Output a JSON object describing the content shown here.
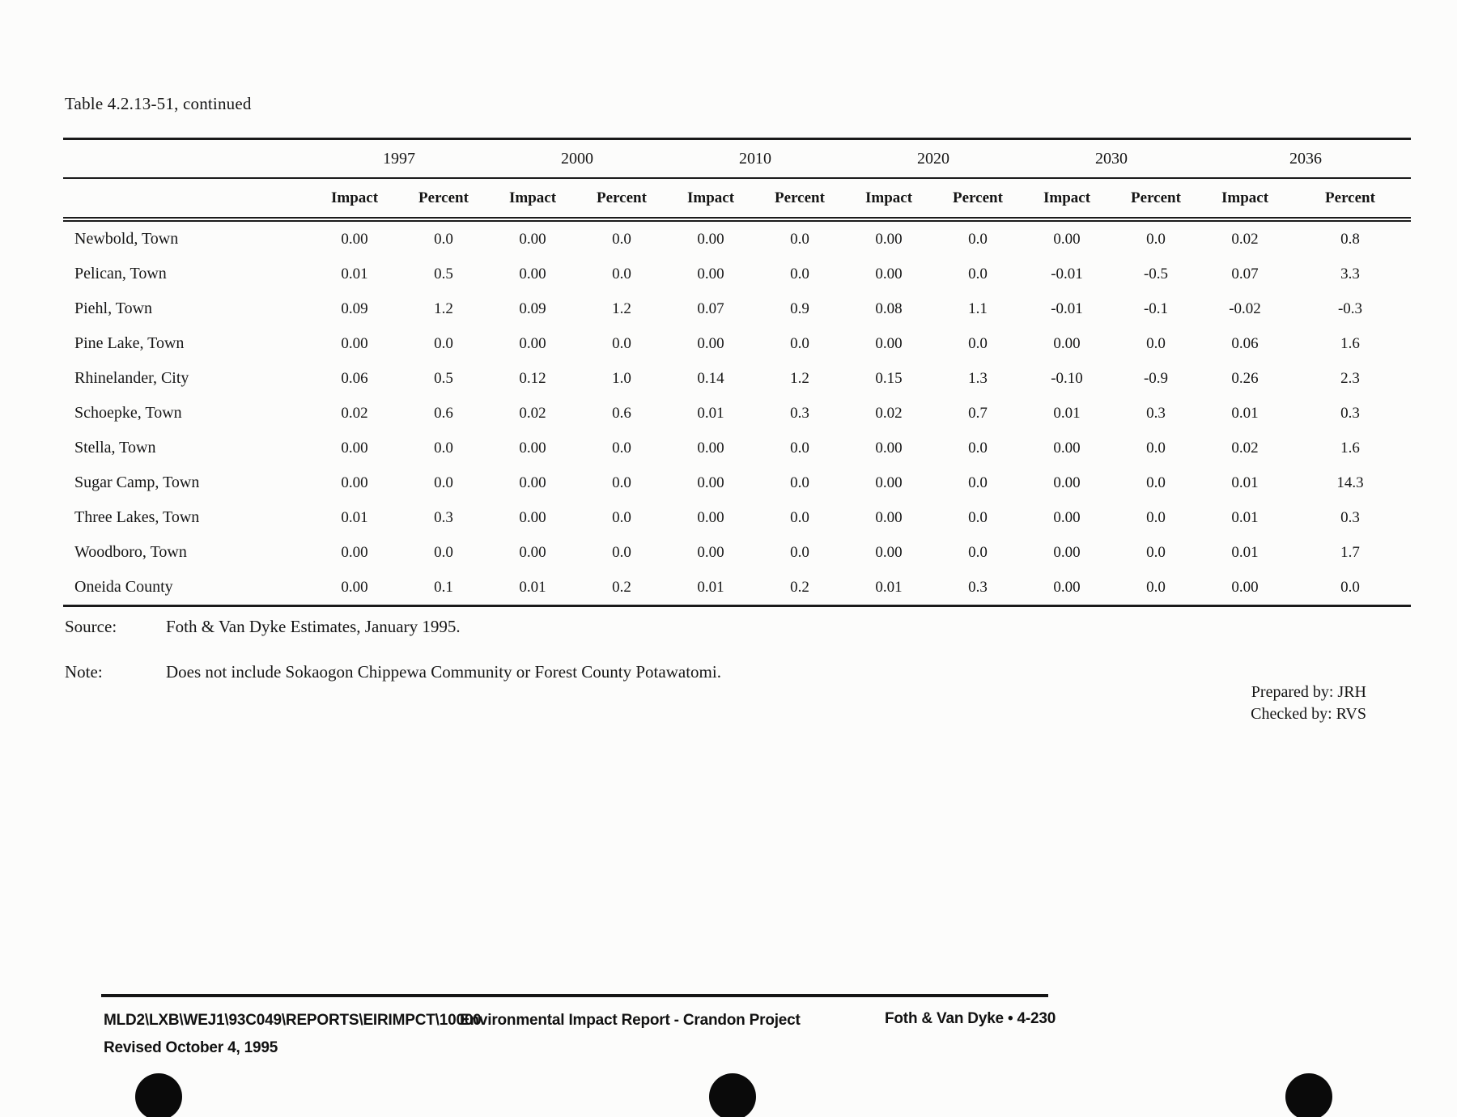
{
  "page": {
    "paper_color": "#fcfcfb",
    "ink_color": "#161616",
    "hole_color": "#0a0a0a"
  },
  "title": "Table 4.2.13-51, continued",
  "table": {
    "years": [
      "1997",
      "2000",
      "2010",
      "2020",
      "2030",
      "2036"
    ],
    "sub_headers": [
      "Impact",
      "Percent"
    ],
    "rows": [
      {
        "name": "Newbold, Town",
        "values": [
          "0.00",
          "0.0",
          "0.00",
          "0.0",
          "0.00",
          "0.0",
          "0.00",
          "0.0",
          "0.00",
          "0.0",
          "0.02",
          "0.8"
        ]
      },
      {
        "name": "Pelican, Town",
        "values": [
          "0.01",
          "0.5",
          "0.00",
          "0.0",
          "0.00",
          "0.0",
          "0.00",
          "0.0",
          "-0.01",
          "-0.5",
          "0.07",
          "3.3"
        ]
      },
      {
        "name": "Piehl, Town",
        "values": [
          "0.09",
          "1.2",
          "0.09",
          "1.2",
          "0.07",
          "0.9",
          "0.08",
          "1.1",
          "-0.01",
          "-0.1",
          "-0.02",
          "-0.3"
        ]
      },
      {
        "name": "Pine Lake, Town",
        "values": [
          "0.00",
          "0.0",
          "0.00",
          "0.0",
          "0.00",
          "0.0",
          "0.00",
          "0.0",
          "0.00",
          "0.0",
          "0.06",
          "1.6"
        ]
      },
      {
        "name": "Rhinelander, City",
        "values": [
          "0.06",
          "0.5",
          "0.12",
          "1.0",
          "0.14",
          "1.2",
          "0.15",
          "1.3",
          "-0.10",
          "-0.9",
          "0.26",
          "2.3"
        ]
      },
      {
        "name": "Schoepke, Town",
        "values": [
          "0.02",
          "0.6",
          "0.02",
          "0.6",
          "0.01",
          "0.3",
          "0.02",
          "0.7",
          "0.01",
          "0.3",
          "0.01",
          "0.3"
        ]
      },
      {
        "name": "Stella, Town",
        "values": [
          "0.00",
          "0.0",
          "0.00",
          "0.0",
          "0.00",
          "0.0",
          "0.00",
          "0.0",
          "0.00",
          "0.0",
          "0.02",
          "1.6"
        ]
      },
      {
        "name": "Sugar Camp, Town",
        "values": [
          "0.00",
          "0.0",
          "0.00",
          "0.0",
          "0.00",
          "0.0",
          "0.00",
          "0.0",
          "0.00",
          "0.0",
          "0.01",
          "14.3"
        ]
      },
      {
        "name": "Three Lakes, Town",
        "values": [
          "0.01",
          "0.3",
          "0.00",
          "0.0",
          "0.00",
          "0.0",
          "0.00",
          "0.0",
          "0.00",
          "0.0",
          "0.01",
          "0.3"
        ]
      },
      {
        "name": "Woodboro, Town",
        "values": [
          "0.00",
          "0.0",
          "0.00",
          "0.0",
          "0.00",
          "0.0",
          "0.00",
          "0.0",
          "0.00",
          "0.0",
          "0.01",
          "1.7"
        ]
      },
      {
        "name": "Oneida County",
        "values": [
          "0.00",
          "0.1",
          "0.01",
          "0.2",
          "0.01",
          "0.2",
          "0.01",
          "0.3",
          "0.00",
          "0.0",
          "0.00",
          "0.0"
        ]
      }
    ]
  },
  "source": {
    "label": "Source:",
    "text": "Foth & Van Dyke Estimates, January 1995."
  },
  "note": {
    "label": "Note:",
    "text": "Does not include Sokaogon Chippewa Community or Forest County Potawatomi."
  },
  "prepared_by": "Prepared by: JRH",
  "checked_by": "Checked by: RVS",
  "footer": {
    "file_path": "MLD2\\LXB\\WEJ1\\93C049\\REPORTS\\EIRIMPCT\\10000",
    "doc_title": "Environmental Impact Report - Crandon Project",
    "page_ref": "Foth & Van Dyke • 4-230",
    "revised": "Revised October 4, 1995"
  }
}
